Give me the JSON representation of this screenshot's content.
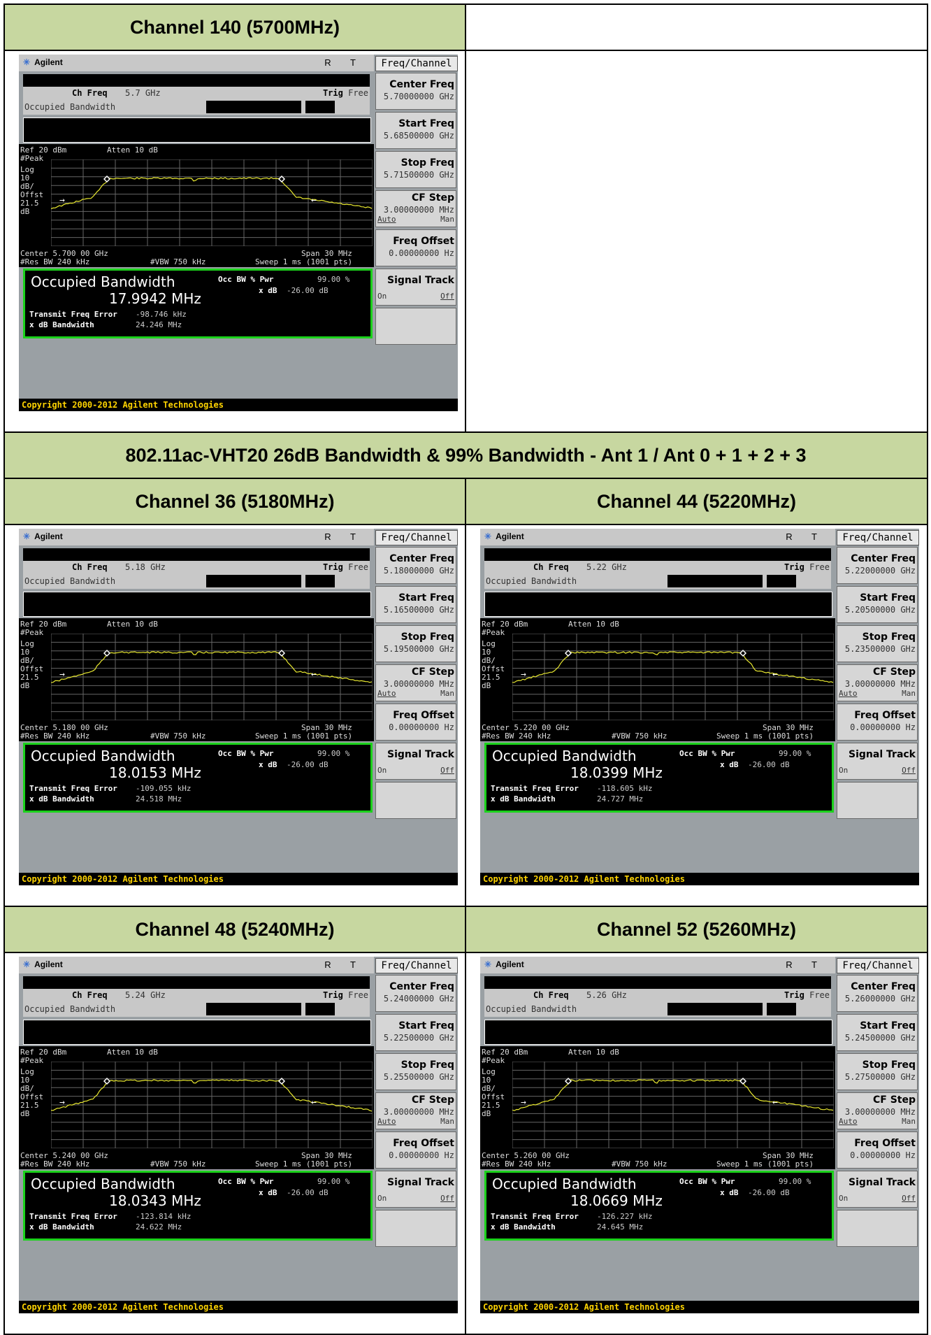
{
  "section_title": "802.11ac-VHT20 26dB Bandwidth & 99% Bandwidth - Ant 1 / Ant 0 + 1 + 2 + 3",
  "common": {
    "brand": "Agilent",
    "rt": "R T",
    "menu": "Freq/Channel",
    "ch_freq_label": "Ch Freq",
    "trig_label": "Trig",
    "trig_value": "Free",
    "mode": "Occupied Bandwidth",
    "ref": "Ref 20 dBm",
    "atten": "Atten 10 dB",
    "left_labels": [
      "#Peak",
      "Log",
      "10",
      "dB/",
      "Offst",
      "21.5",
      "dB"
    ],
    "span": "Span 30 MHz",
    "res_bw": "#Res BW 240 kHz",
    "vbw": "#VBW 750 kHz",
    "sweep": "Sweep 1 ms (1001 pts)",
    "result_title": "Occupied Bandwidth",
    "occ_pwr_label": "Occ BW % Pwr",
    "occ_pwr_value": "99.00 %",
    "xdb_label": "x dB",
    "xdb_value": "-26.00 dB",
    "tfe_label": "Transmit Freq Error",
    "xbw_label": "x dB Bandwidth",
    "copyright": "Copyright 2000-2012 Agilent Technologies",
    "cf_step_label": "CF Step",
    "cf_step_value": "3.00000000 MHz",
    "auto": "Auto",
    "man": "Man",
    "freq_offset_label": "Freq Offset",
    "freq_offset_value": "0.00000000 Hz",
    "signal_track_label": "Signal Track",
    "on": "On",
    "off": "Off",
    "center_freq_label": "Center Freq",
    "start_freq_label": "Start Freq",
    "stop_freq_label": "Stop Freq"
  },
  "panels": [
    {
      "title": "Channel 140 (5700MHz)",
      "ch_freq": "5.7 GHz",
      "center": "Center 5.700 00 GHz",
      "obw": "17.9942 MHz",
      "tfe": "-98.746 kHz",
      "xbw": "24.246 MHz",
      "center_freq": "5.70000000 GHz",
      "start_freq": "5.68500000 GHz",
      "stop_freq": "5.71500000 GHz"
    },
    {
      "title": "Channel 36 (5180MHz)",
      "ch_freq": "5.18 GHz",
      "center": "Center 5.180 00 GHz",
      "obw": "18.0153 MHz",
      "tfe": "-109.055 kHz",
      "xbw": "24.518 MHz",
      "center_freq": "5.18000000 GHz",
      "start_freq": "5.16500000 GHz",
      "stop_freq": "5.19500000 GHz"
    },
    {
      "title": "Channel 44 (5220MHz)",
      "ch_freq": "5.22 GHz",
      "center": "Center 5.220 00 GHz",
      "obw": "18.0399 MHz",
      "tfe": "-118.605 kHz",
      "xbw": "24.727 MHz",
      "center_freq": "5.22000000 GHz",
      "start_freq": "5.20500000 GHz",
      "stop_freq": "5.23500000 GHz"
    },
    {
      "title": "Channel 48 (5240MHz)",
      "ch_freq": "5.24 GHz",
      "center": "Center 5.240 00 GHz",
      "obw": "18.0343 MHz",
      "tfe": "-123.814 kHz",
      "xbw": "24.622 MHz",
      "center_freq": "5.24000000 GHz",
      "start_freq": "5.22500000 GHz",
      "stop_freq": "5.25500000 GHz"
    },
    {
      "title": "Channel 52 (5260MHz)",
      "ch_freq": "5.26 GHz",
      "center": "Center 5.260 00 GHz",
      "obw": "18.0669 MHz",
      "tfe": "-126.227 kHz",
      "xbw": "24.645 MHz",
      "center_freq": "5.26000000 GHz",
      "start_freq": "5.24500000 GHz",
      "stop_freq": "5.27500000 GHz"
    }
  ],
  "colors": {
    "header_bg": "#c7d7a0",
    "trace": "#e8e830",
    "result_border": "#1bd21b",
    "copyright_text": "#ffd400"
  }
}
